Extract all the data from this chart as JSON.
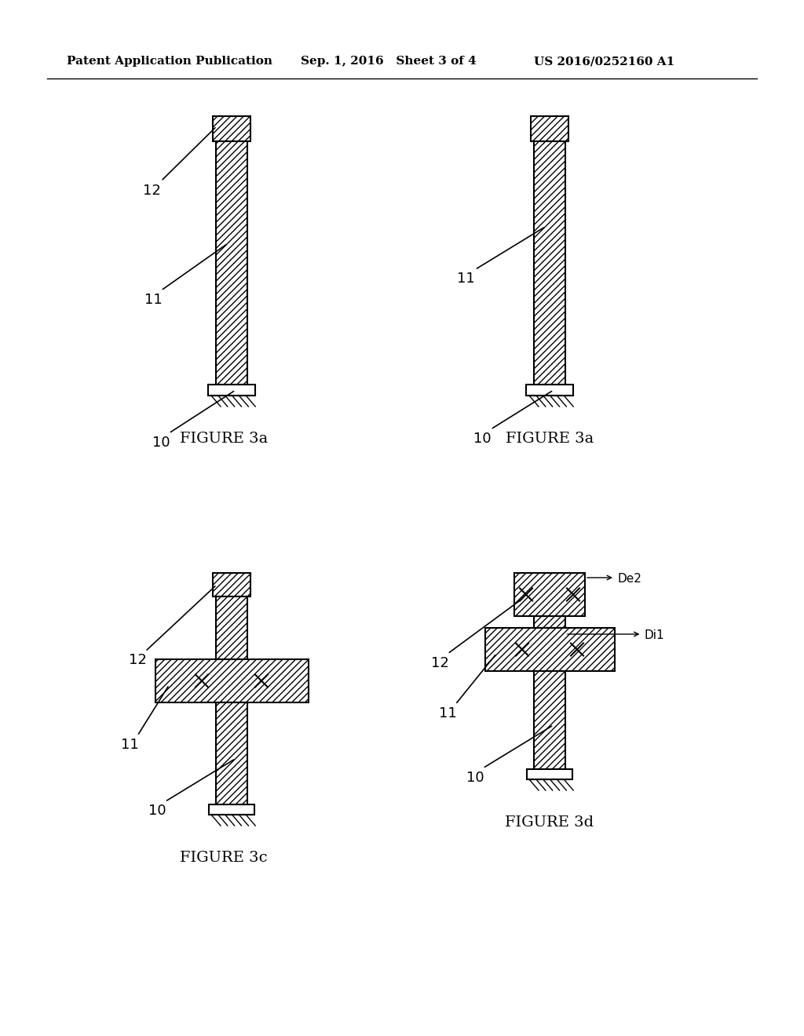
{
  "bg_color": "#ffffff",
  "line_color": "#000000",
  "header_left": "Patent Application Publication",
  "header_mid": "Sep. 1, 2016   Sheet 3 of 4",
  "header_right": "US 2016/0252160 A1",
  "fig_labels": [
    "FIGURE 3a",
    "FIGURE 3a",
    "FIGURE 3c",
    "FIGURE 3d"
  ]
}
